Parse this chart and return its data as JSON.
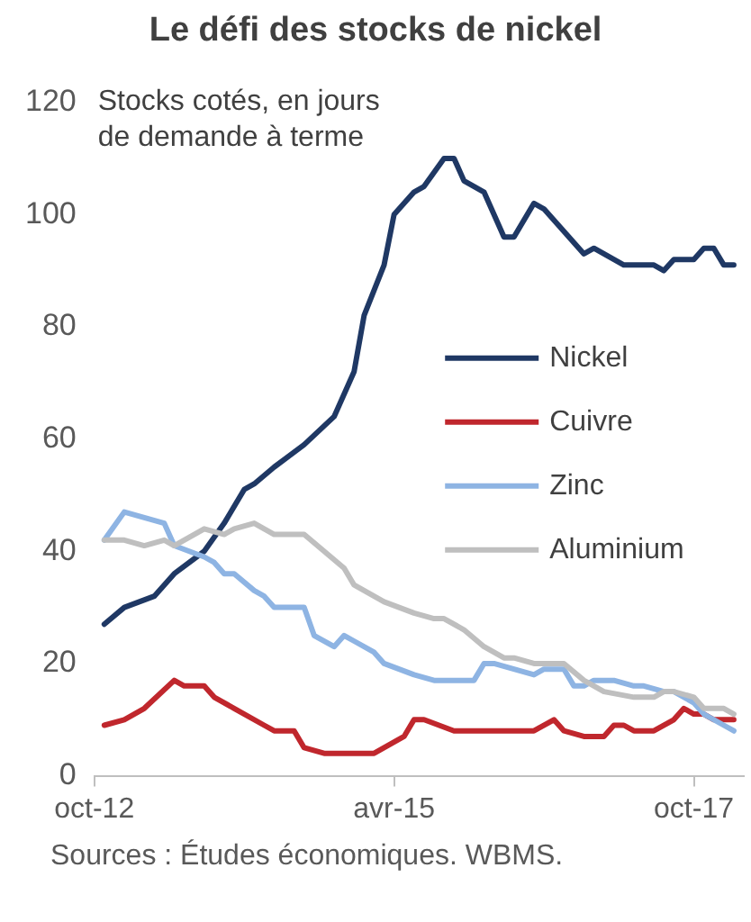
{
  "chart_data": {
    "type": "line",
    "title": "Le défi des stocks de nickel",
    "ylabel": "Stocks cotés, en jours de demande à terme",
    "xlim": [
      "2012-10",
      "2018-03"
    ],
    "xticks": [
      {
        "value": "2012-10",
        "label": "oct-12"
      },
      {
        "value": "2015-04",
        "label": "avr-15"
      },
      {
        "value": "2017-10",
        "label": "oct-17"
      }
    ],
    "ylim": [
      0,
      120
    ],
    "yticks": [
      0,
      20,
      40,
      60,
      80,
      100,
      120
    ],
    "grid": false,
    "legend": "right",
    "marker": "none",
    "line_style": "solid",
    "series": [
      {
        "name": "Nickel",
        "color": "#1f3864",
        "x": [
          "2012-11",
          "2013-01",
          "2013-04",
          "2013-06",
          "2013-09",
          "2013-11",
          "2014-01",
          "2014-02",
          "2014-04",
          "2014-07",
          "2014-10",
          "2014-12",
          "2015-01",
          "2015-03",
          "2015-04",
          "2015-06",
          "2015-07",
          "2015-09",
          "2015-10",
          "2015-11",
          "2016-01",
          "2016-03",
          "2016-04",
          "2016-06",
          "2016-07",
          "2016-08",
          "2016-09",
          "2016-11",
          "2016-12",
          "2017-03",
          "2017-06",
          "2017-07",
          "2017-08",
          "2017-10",
          "2017-11",
          "2017-12",
          "2018-01",
          "2018-02"
        ],
        "values": [
          27,
          30,
          32,
          36,
          40,
          45,
          51,
          52,
          55,
          59,
          64,
          72,
          82,
          91,
          100,
          104,
          105,
          110,
          110,
          106,
          104,
          96,
          96,
          102,
          101,
          99,
          97,
          93,
          94,
          91,
          91,
          90,
          92,
          92,
          94,
          94,
          91,
          91
        ]
      },
      {
        "name": "Cuivre",
        "color": "#c0272d",
        "x": [
          "2012-11",
          "2013-01",
          "2013-03",
          "2013-06",
          "2013-07",
          "2013-09",
          "2013-10",
          "2013-12",
          "2014-03",
          "2014-04",
          "2014-06",
          "2014-07",
          "2014-09",
          "2015-02",
          "2015-03",
          "2015-05",
          "2015-06",
          "2015-07",
          "2015-10",
          "2015-12",
          "2016-03",
          "2016-05",
          "2016-06",
          "2016-08",
          "2016-09",
          "2016-11",
          "2017-01",
          "2017-02",
          "2017-03",
          "2017-04",
          "2017-06",
          "2017-08",
          "2017-09",
          "2017-10",
          "2017-11",
          "2017-12",
          "2018-02"
        ],
        "values": [
          9,
          10,
          12,
          17,
          16,
          16,
          14,
          12,
          9,
          8,
          8,
          5,
          4,
          4,
          5,
          7,
          10,
          10,
          8,
          8,
          8,
          8,
          8,
          10,
          8,
          7,
          7,
          9,
          9,
          8,
          8,
          10,
          12,
          11,
          11,
          10,
          10
        ]
      },
      {
        "name": "Zinc",
        "color": "#8eb4e3",
        "x": [
          "2012-11",
          "2013-01",
          "2013-03",
          "2013-05",
          "2013-06",
          "2013-09",
          "2013-10",
          "2013-11",
          "2013-12",
          "2014-02",
          "2014-03",
          "2014-04",
          "2014-07",
          "2014-08",
          "2014-10",
          "2014-11",
          "2014-12",
          "2015-02",
          "2015-03",
          "2015-06",
          "2015-08",
          "2015-10",
          "2015-11",
          "2015-12",
          "2016-01",
          "2016-02",
          "2016-04",
          "2016-06",
          "2016-07",
          "2016-09",
          "2016-10",
          "2016-11",
          "2016-12",
          "2017-02",
          "2017-04",
          "2017-05",
          "2017-07",
          "2017-08",
          "2017-10",
          "2017-11",
          "2018-01",
          "2018-02"
        ],
        "values": [
          42,
          47,
          46,
          45,
          41,
          39,
          38,
          36,
          36,
          33,
          32,
          30,
          30,
          25,
          23,
          25,
          24,
          22,
          20,
          18,
          17,
          17,
          17,
          17,
          20,
          20,
          19,
          18,
          19,
          19,
          16,
          16,
          17,
          17,
          16,
          16,
          15,
          15,
          13,
          11,
          9,
          8
        ]
      },
      {
        "name": "Aluminium",
        "color": "#bfbfbf",
        "x": [
          "2012-11",
          "2013-01",
          "2013-03",
          "2013-05",
          "2013-06",
          "2013-09",
          "2013-11",
          "2013-12",
          "2014-02",
          "2014-04",
          "2014-07",
          "2014-09",
          "2014-11",
          "2014-12",
          "2015-03",
          "2015-06",
          "2015-08",
          "2015-09",
          "2015-11",
          "2016-01",
          "2016-03",
          "2016-04",
          "2016-06",
          "2016-07",
          "2016-09",
          "2016-11",
          "2017-01",
          "2017-04",
          "2017-06",
          "2017-07",
          "2017-08",
          "2017-10",
          "2017-11",
          "2018-01",
          "2018-02"
        ],
        "values": [
          42,
          42,
          41,
          42,
          41,
          44,
          43,
          44,
          45,
          43,
          43,
          40,
          37,
          34,
          31,
          29,
          28,
          28,
          26,
          23,
          21,
          21,
          20,
          20,
          20,
          17,
          15,
          14,
          14,
          15,
          15,
          14,
          12,
          12,
          11
        ]
      }
    ],
    "annotations": [
      "Sources : Études économiques. WBMS."
    ]
  }
}
